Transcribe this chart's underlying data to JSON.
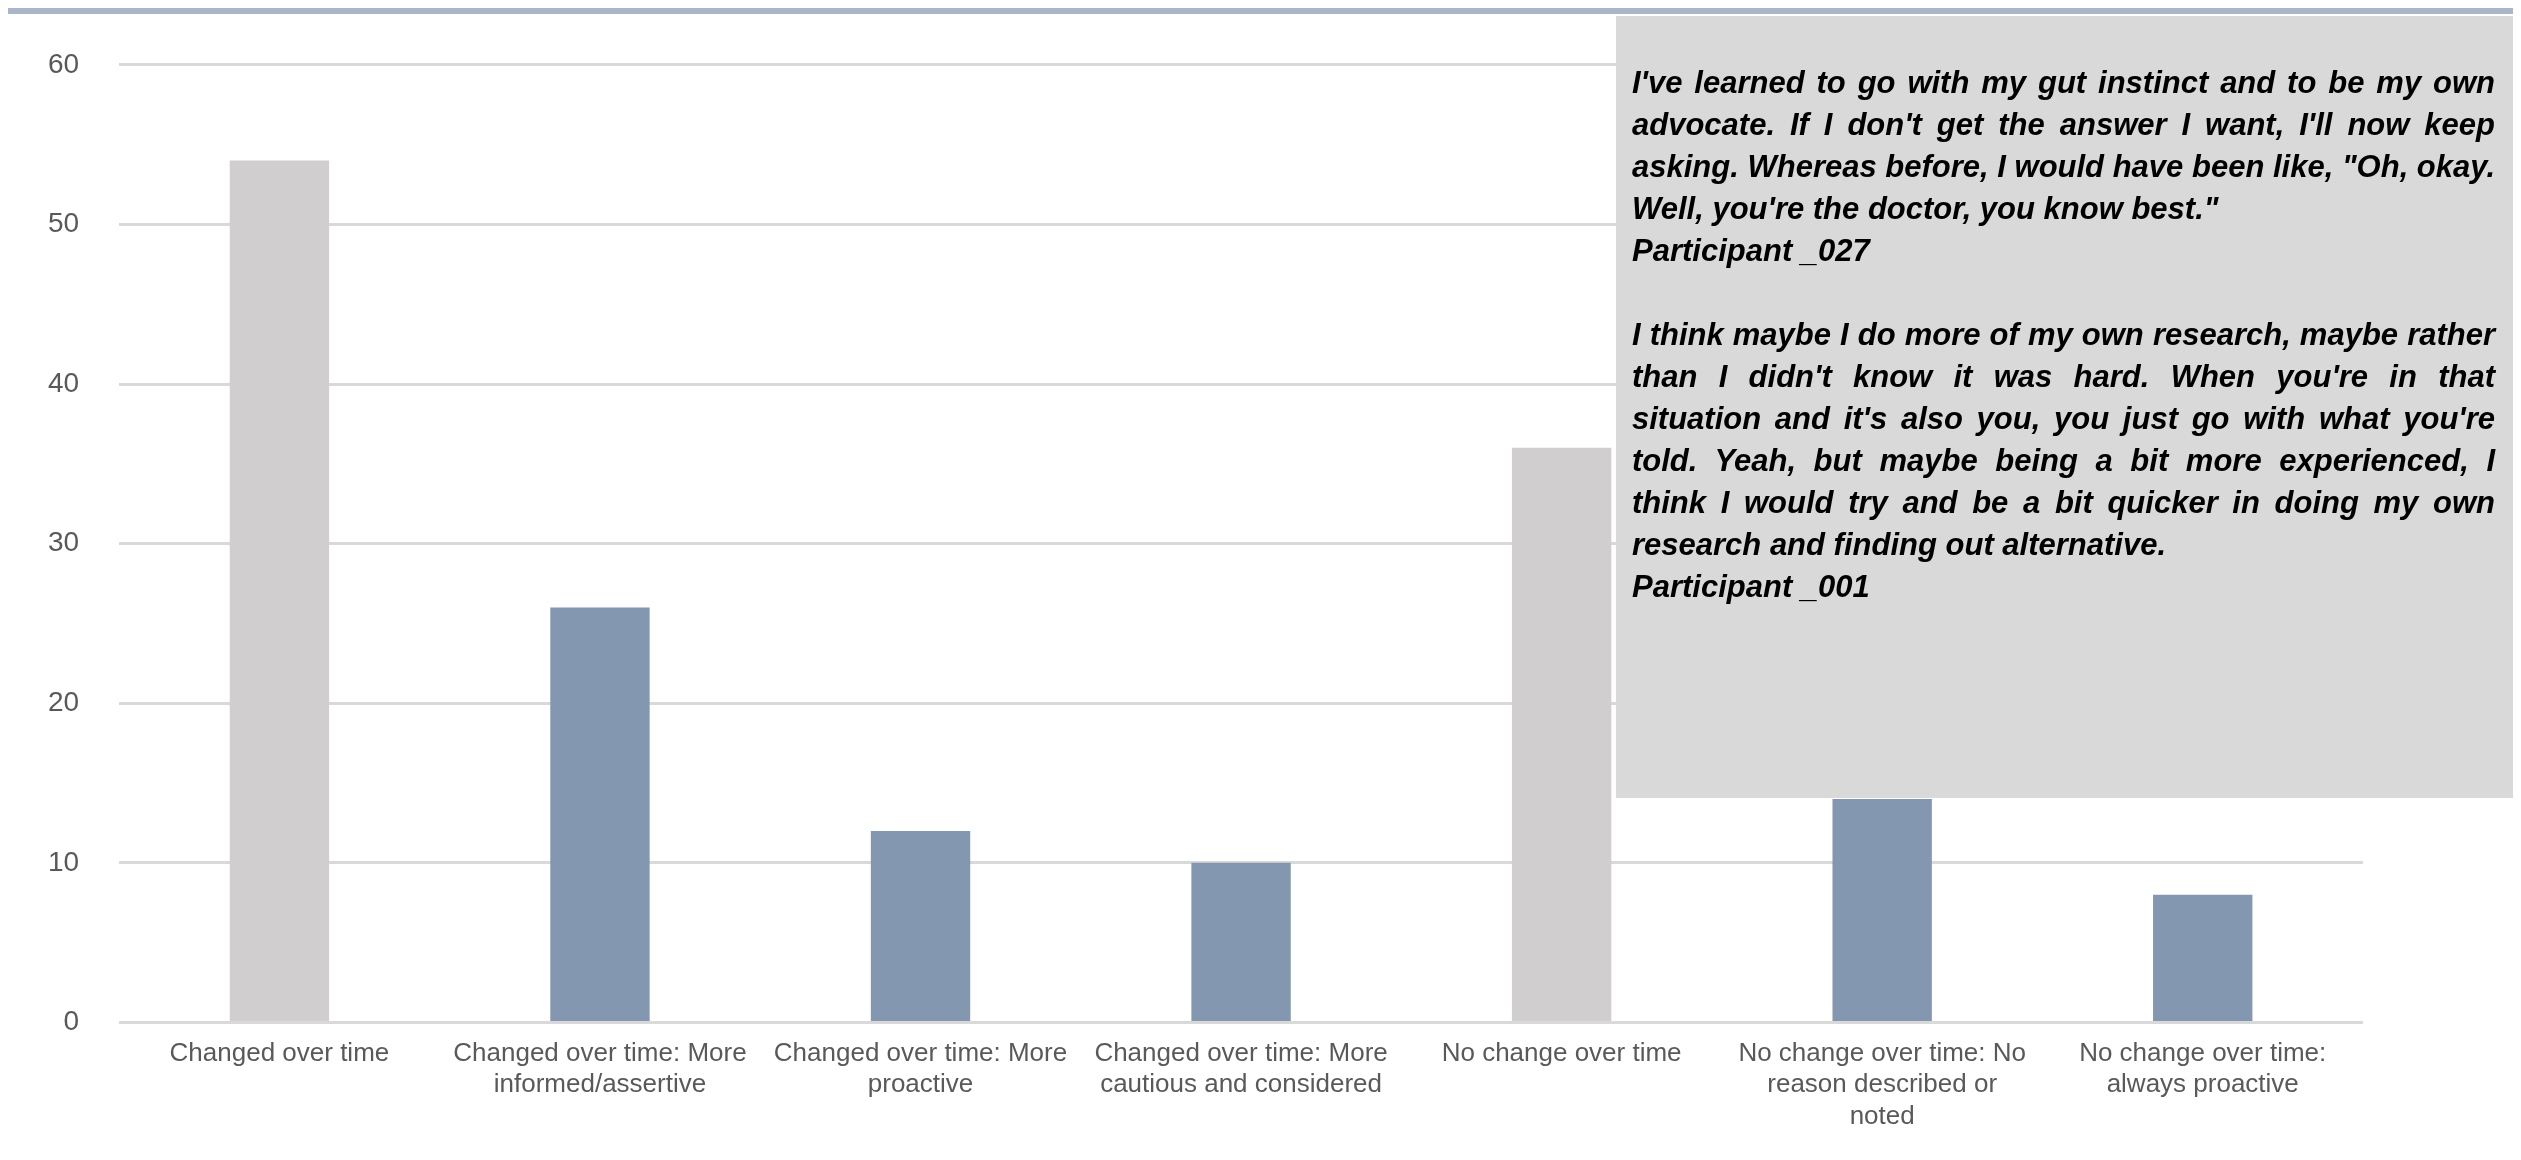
{
  "chart_data": {
    "type": "bar",
    "categories": [
      "Changed over time",
      "Changed over time: More informed/assertive",
      "Changed over time: More proactive",
      "Changed over time: More cautious and considered",
      "No change over time",
      "No change over time: No reason described or noted",
      "No change over time: always proactive"
    ],
    "values": [
      54,
      26,
      12,
      10,
      36,
      14,
      8
    ],
    "colors": [
      "#d0cece",
      "#8497b0",
      "#8497b0",
      "#8497b0",
      "#d0cece",
      "#8497b0",
      "#8497b0"
    ],
    "ylim": [
      0,
      60
    ],
    "yticks": [
      0,
      10,
      20,
      30,
      40,
      50,
      60
    ],
    "grid": "y",
    "legend": false,
    "annotations": [
      "I've learned to go with my gut instinct and to be my own advocate. If I don't get the answer I want, I'll now keep asking. Whereas before, I would have been like, \"Oh, okay. Well, you're the doctor, you know best.\"\nParticipant _027",
      "I think maybe I do more of my own research, maybe rather than I didn't know it was hard. When you're in that situation and it's also you, you just go with what you're told. Yeah, but maybe being a bit more experienced, I think I would try and be a bit quicker in doing my own research and finding out alternative.\nParticipant _001"
    ]
  }
}
